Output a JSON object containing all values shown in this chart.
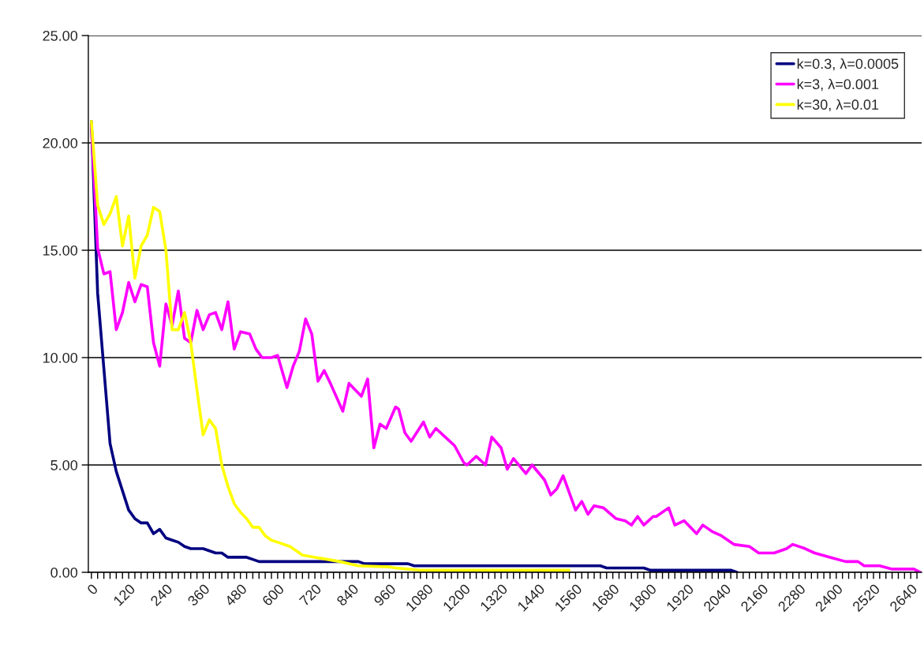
{
  "chart_data": {
    "type": "line",
    "series": [
      {
        "name": "k=0.3, λ=0.0005",
        "color": "#000080",
        "x": [
          0,
          20,
          40,
          60,
          80,
          100,
          120,
          140,
          160,
          180,
          200,
          220,
          240,
          260,
          280,
          300,
          320,
          340,
          360,
          380,
          400,
          420,
          440,
          460,
          480,
          500,
          520,
          540,
          560,
          860,
          880,
          1020,
          1040,
          1640,
          1660,
          1780,
          1800,
          2060,
          2080
        ],
        "values": [
          21.0,
          13.0,
          9.5,
          6.0,
          4.7,
          3.8,
          2.9,
          2.5,
          2.3,
          2.3,
          1.8,
          2.0,
          1.6,
          1.5,
          1.4,
          1.2,
          1.1,
          1.1,
          1.1,
          1.0,
          0.9,
          0.9,
          0.7,
          0.7,
          0.7,
          0.7,
          0.6,
          0.5,
          0.5,
          0.5,
          0.4,
          0.4,
          0.3,
          0.3,
          0.2,
          0.2,
          0.1,
          0.1,
          0.0
        ]
      },
      {
        "name": "k=3, λ=0.001",
        "color": "#ff00ff",
        "x": [
          0,
          20,
          40,
          60,
          80,
          100,
          120,
          140,
          160,
          180,
          200,
          220,
          240,
          260,
          280,
          300,
          320,
          340,
          360,
          380,
          400,
          420,
          440,
          460,
          480,
          510,
          530,
          550,
          580,
          600,
          630,
          650,
          670,
          690,
          710,
          730,
          750,
          770,
          810,
          830,
          870,
          890,
          910,
          930,
          950,
          980,
          990,
          1010,
          1030,
          1070,
          1090,
          1110,
          1140,
          1170,
          1200,
          1210,
          1240,
          1270,
          1290,
          1320,
          1340,
          1360,
          1400,
          1420,
          1460,
          1480,
          1500,
          1520,
          1560,
          1580,
          1600,
          1620,
          1650,
          1690,
          1720,
          1740,
          1760,
          1780,
          1810,
          1820,
          1860,
          1880,
          1910,
          1950,
          1970,
          2000,
          2030,
          2070,
          2120,
          2150,
          2200,
          2240,
          2260,
          2300,
          2330,
          2380,
          2430,
          2470,
          2490,
          2540,
          2580,
          2650,
          2670
        ],
        "values": [
          20.8,
          15.1,
          13.9,
          14.0,
          11.3,
          12.1,
          13.5,
          12.6,
          13.4,
          13.3,
          10.7,
          9.6,
          12.5,
          11.5,
          13.1,
          10.9,
          10.7,
          12.2,
          11.3,
          12.0,
          12.1,
          11.3,
          12.6,
          10.4,
          11.2,
          11.1,
          10.4,
          10.0,
          10.0,
          10.1,
          8.6,
          9.6,
          10.3,
          11.8,
          11.1,
          8.9,
          9.4,
          8.8,
          7.5,
          8.8,
          8.2,
          9.0,
          5.8,
          6.9,
          6.7,
          7.7,
          7.6,
          6.5,
          6.1,
          7.0,
          6.3,
          6.7,
          6.3,
          5.9,
          5.1,
          5.0,
          5.4,
          5.0,
          6.3,
          5.8,
          4.8,
          5.3,
          4.6,
          5.0,
          4.3,
          3.6,
          3.9,
          4.5,
          2.9,
          3.3,
          2.7,
          3.1,
          3.0,
          2.5,
          2.4,
          2.2,
          2.6,
          2.2,
          2.6,
          2.6,
          3.0,
          2.2,
          2.4,
          1.8,
          2.2,
          1.9,
          1.7,
          1.3,
          1.2,
          0.9,
          0.9,
          1.1,
          1.3,
          1.1,
          0.9,
          0.7,
          0.5,
          0.5,
          0.3,
          0.3,
          0.15,
          0.15,
          0.0
        ]
      },
      {
        "name": "k=30, λ=0.01",
        "color": "#ffff00",
        "x": [
          0,
          20,
          40,
          60,
          80,
          100,
          120,
          140,
          160,
          180,
          200,
          220,
          240,
          260,
          280,
          300,
          320,
          340,
          360,
          380,
          400,
          420,
          440,
          460,
          480,
          500,
          520,
          540,
          560,
          580,
          600,
          640,
          680,
          720,
          760,
          800,
          860,
          960,
          980,
          1060,
          1540
        ],
        "values": [
          21.0,
          17.1,
          16.2,
          16.7,
          17.5,
          15.2,
          16.6,
          13.7,
          15.2,
          15.7,
          17.0,
          16.8,
          15.0,
          11.3,
          11.3,
          12.1,
          10.7,
          8.5,
          6.4,
          7.1,
          6.7,
          5.0,
          4.0,
          3.2,
          2.8,
          2.5,
          2.1,
          2.1,
          1.7,
          1.5,
          1.4,
          1.2,
          0.8,
          0.7,
          0.6,
          0.5,
          0.3,
          0.25,
          0.2,
          0.1,
          0.1
        ]
      }
    ],
    "xlim": [
      -10,
      2675
    ],
    "xticks": [
      0,
      {
        "value": 20,
        "label": null
      },
      {
        "value": 40,
        "label": null
      },
      {
        "value": 60,
        "label": null
      },
      {
        "value": 80,
        "label": null
      },
      {
        "value": 100,
        "label": null
      },
      120,
      {
        "value": 140,
        "label": null
      },
      {
        "value": 160,
        "label": null
      },
      {
        "value": 180,
        "label": null
      },
      {
        "value": 200,
        "label": null
      },
      {
        "value": 220,
        "label": null
      },
      240,
      {
        "value": 260,
        "label": null
      },
      {
        "value": 280,
        "label": null
      },
      {
        "value": 300,
        "label": null
      },
      {
        "value": 320,
        "label": null
      },
      {
        "value": 340,
        "label": null
      },
      360,
      {
        "value": 380,
        "label": null
      },
      {
        "value": 400,
        "label": null
      },
      {
        "value": 420,
        "label": null
      },
      {
        "value": 440,
        "label": null
      },
      {
        "value": 460,
        "label": null
      },
      480,
      {
        "value": 500,
        "label": null
      },
      {
        "value": 520,
        "label": null
      },
      {
        "value": 540,
        "label": null
      },
      {
        "value": 560,
        "label": null
      },
      {
        "value": 580,
        "label": null
      },
      600,
      {
        "value": 620,
        "label": null
      },
      {
        "value": 640,
        "label": null
      },
      {
        "value": 660,
        "label": null
      },
      {
        "value": 680,
        "label": null
      },
      {
        "value": 700,
        "label": null
      },
      720,
      {
        "value": 740,
        "label": null
      },
      {
        "value": 760,
        "label": null
      },
      {
        "value": 780,
        "label": null
      },
      {
        "value": 800,
        "label": null
      },
      {
        "value": 820,
        "label": null
      },
      840,
      {
        "value": 860,
        "label": null
      },
      {
        "value": 880,
        "label": null
      },
      {
        "value": 900,
        "label": null
      },
      {
        "value": 920,
        "label": null
      },
      {
        "value": 940,
        "label": null
      },
      960,
      {
        "value": 980,
        "label": null
      },
      {
        "value": 1000,
        "label": null
      },
      {
        "value": 1020,
        "label": null
      },
      {
        "value": 1040,
        "label": null
      },
      {
        "value": 1060,
        "label": null
      },
      1080,
      {
        "value": 1100,
        "label": null
      },
      {
        "value": 1120,
        "label": null
      },
      {
        "value": 1140,
        "label": null
      },
      {
        "value": 1160,
        "label": null
      },
      {
        "value": 1180,
        "label": null
      },
      1200,
      {
        "value": 1220,
        "label": null
      },
      {
        "value": 1240,
        "label": null
      },
      {
        "value": 1260,
        "label": null
      },
      {
        "value": 1280,
        "label": null
      },
      {
        "value": 1300,
        "label": null
      },
      1320,
      {
        "value": 1340,
        "label": null
      },
      {
        "value": 1360,
        "label": null
      },
      {
        "value": 1380,
        "label": null
      },
      {
        "value": 1400,
        "label": null
      },
      {
        "value": 1420,
        "label": null
      },
      1440,
      {
        "value": 1460,
        "label": null
      },
      {
        "value": 1480,
        "label": null
      },
      {
        "value": 1500,
        "label": null
      },
      {
        "value": 1520,
        "label": null
      },
      {
        "value": 1540,
        "label": null
      },
      1560,
      {
        "value": 1580,
        "label": null
      },
      {
        "value": 1600,
        "label": null
      },
      {
        "value": 1620,
        "label": null
      },
      {
        "value": 1640,
        "label": null
      },
      {
        "value": 1660,
        "label": null
      },
      1680,
      {
        "value": 1700,
        "label": null
      },
      {
        "value": 1720,
        "label": null
      },
      {
        "value": 1740,
        "label": null
      },
      {
        "value": 1760,
        "label": null
      },
      {
        "value": 1780,
        "label": null
      },
      1800,
      {
        "value": 1820,
        "label": null
      },
      {
        "value": 1840,
        "label": null
      },
      {
        "value": 1860,
        "label": null
      },
      {
        "value": 1880,
        "label": null
      },
      {
        "value": 1900,
        "label": null
      },
      1920,
      {
        "value": 1940,
        "label": null
      },
      {
        "value": 1960,
        "label": null
      },
      {
        "value": 1980,
        "label": null
      },
      {
        "value": 2000,
        "label": null
      },
      {
        "value": 2020,
        "label": null
      },
      2040,
      {
        "value": 2060,
        "label": null
      },
      {
        "value": 2080,
        "label": null
      },
      {
        "value": 2100,
        "label": null
      },
      {
        "value": 2120,
        "label": null
      },
      {
        "value": 2140,
        "label": null
      },
      2160,
      {
        "value": 2180,
        "label": null
      },
      {
        "value": 2200,
        "label": null
      },
      {
        "value": 2220,
        "label": null
      },
      {
        "value": 2240,
        "label": null
      },
      {
        "value": 2260,
        "label": null
      },
      2280,
      {
        "value": 2300,
        "label": null
      },
      {
        "value": 2320,
        "label": null
      },
      {
        "value": 2340,
        "label": null
      },
      {
        "value": 2360,
        "label": null
      },
      {
        "value": 2380,
        "label": null
      },
      2400,
      {
        "value": 2420,
        "label": null
      },
      {
        "value": 2440,
        "label": null
      },
      {
        "value": 2460,
        "label": null
      },
      {
        "value": 2480,
        "label": null
      },
      {
        "value": 2500,
        "label": null
      },
      2520,
      {
        "value": 2540,
        "label": null
      },
      {
        "value": 2560,
        "label": null
      },
      {
        "value": 2580,
        "label": null
      },
      {
        "value": 2600,
        "label": null
      },
      {
        "value": 2620,
        "label": null
      },
      2640,
      {
        "value": 2660,
        "label": null
      }
    ],
    "ylim": [
      0,
      25
    ],
    "yticks": [
      {
        "value": 0,
        "label": "0.00"
      },
      {
        "value": 5,
        "label": "5.00"
      },
      {
        "value": 10,
        "label": "10.00"
      },
      {
        "value": 15,
        "label": "15.00"
      },
      {
        "value": 20,
        "label": "20.00"
      },
      {
        "value": 25,
        "label": "25.00"
      }
    ],
    "grid": "y",
    "legend": "top right",
    "marker": "none",
    "line_style": "solid"
  }
}
